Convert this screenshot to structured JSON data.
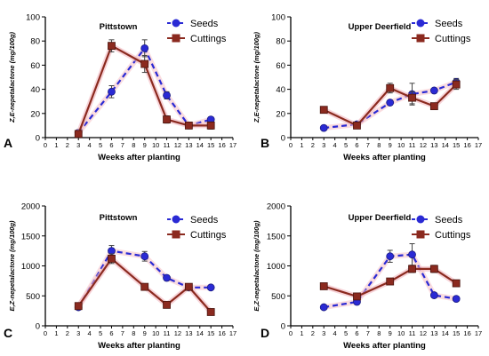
{
  "chart_data": [
    {
      "type": "line",
      "panel_label": "A",
      "title": "Pittstown",
      "xlabel": "Weeks after planting",
      "ylabel": "Z,E-nepetalactone (mg/100g)",
      "xlim": [
        0,
        17
      ],
      "ylim": [
        0,
        100
      ],
      "xticks": [
        0,
        1,
        2,
        3,
        4,
        5,
        6,
        7,
        8,
        9,
        10,
        11,
        12,
        13,
        14,
        15,
        16,
        17
      ],
      "yticks": [
        0,
        20,
        40,
        60,
        80,
        100
      ],
      "legend_position": "top-right",
      "series": [
        {
          "name": "Seeds",
          "style": "dashed",
          "marker": "circle",
          "color": "#2a2ad4",
          "x": [
            3,
            6,
            9,
            11,
            13,
            15
          ],
          "y": [
            4,
            38,
            74,
            35,
            10,
            15
          ],
          "err": [
            2,
            5,
            7,
            3,
            2,
            2
          ]
        },
        {
          "name": "Cuttings",
          "style": "solid",
          "marker": "square",
          "color": "#8b2a1f",
          "x": [
            3,
            6,
            9,
            11,
            13,
            15
          ],
          "y": [
            3,
            76,
            61,
            15,
            10,
            10
          ],
          "err": [
            2,
            5,
            7,
            3,
            2,
            3
          ]
        }
      ]
    },
    {
      "type": "line",
      "panel_label": "B",
      "title": "Upper Deerfield",
      "xlabel": "Weeks after planting",
      "ylabel": "Z,E-nepetalactone (mg/100g)",
      "xlim": [
        0,
        17
      ],
      "ylim": [
        0,
        100
      ],
      "xticks": [
        0,
        1,
        2,
        3,
        4,
        5,
        6,
        7,
        8,
        9,
        10,
        11,
        12,
        13,
        14,
        15,
        16,
        17
      ],
      "yticks": [
        0,
        20,
        40,
        60,
        80,
        100
      ],
      "legend_position": "top-right",
      "series": [
        {
          "name": "Seeds",
          "style": "dashed",
          "marker": "circle",
          "color": "#2a2ad4",
          "x": [
            3,
            6,
            9,
            11,
            13,
            15
          ],
          "y": [
            8,
            11,
            29,
            36,
            39,
            46
          ],
          "err": [
            1,
            1,
            2,
            9,
            1,
            3
          ]
        },
        {
          "name": "Cuttings",
          "style": "solid",
          "marker": "square",
          "color": "#8b2a1f",
          "x": [
            3,
            6,
            9,
            11,
            13,
            15
          ],
          "y": [
            23,
            10,
            41,
            33,
            26,
            44
          ],
          "err": [
            1,
            1,
            4,
            5,
            2,
            4
          ]
        }
      ]
    },
    {
      "type": "line",
      "panel_label": "C",
      "title": "Pittstown",
      "xlabel": "Weeks after planting",
      "ylabel": "E,Z-nepetalactone (mg/100g)",
      "xlim": [
        0,
        17
      ],
      "ylim": [
        0,
        2000
      ],
      "xticks": [
        0,
        1,
        2,
        3,
        4,
        5,
        6,
        7,
        8,
        9,
        10,
        11,
        12,
        13,
        14,
        15,
        16,
        17
      ],
      "yticks": [
        0,
        500,
        1000,
        1500,
        2000
      ],
      "legend_position": "top-right",
      "series": [
        {
          "name": "Seeds",
          "style": "dashed",
          "marker": "circle",
          "color": "#2a2ad4",
          "x": [
            3,
            6,
            9,
            11,
            13,
            15
          ],
          "y": [
            310,
            1250,
            1160,
            800,
            640,
            640
          ],
          "err": [
            40,
            90,
            80,
            40,
            40,
            30
          ]
        },
        {
          "name": "Cuttings",
          "style": "solid",
          "marker": "square",
          "color": "#8b2a1f",
          "x": [
            3,
            6,
            9,
            11,
            13,
            15
          ],
          "y": [
            330,
            1120,
            650,
            350,
            650,
            230
          ],
          "err": [
            40,
            80,
            40,
            40,
            40,
            30
          ]
        }
      ]
    },
    {
      "type": "line",
      "panel_label": "D",
      "title": "Upper Deerfield",
      "xlabel": "Weeks after planting",
      "ylabel": "E,Z-nepetalactone (mg/100g)",
      "xlim": [
        0,
        17
      ],
      "ylim": [
        0,
        2000
      ],
      "xticks": [
        0,
        1,
        2,
        3,
        4,
        5,
        6,
        7,
        8,
        9,
        10,
        11,
        12,
        13,
        14,
        15,
        16,
        17
      ],
      "yticks": [
        0,
        500,
        1000,
        1500,
        2000
      ],
      "legend_position": "top-right",
      "series": [
        {
          "name": "Seeds",
          "style": "dashed",
          "marker": "circle",
          "color": "#2a2ad4",
          "x": [
            3,
            6,
            9,
            11,
            13,
            15
          ],
          "y": [
            310,
            400,
            1160,
            1190,
            510,
            450
          ],
          "err": [
            20,
            30,
            100,
            180,
            40,
            30
          ]
        },
        {
          "name": "Cuttings",
          "style": "solid",
          "marker": "square",
          "color": "#8b2a1f",
          "x": [
            3,
            6,
            9,
            11,
            13,
            15
          ],
          "y": [
            660,
            490,
            740,
            950,
            950,
            710
          ],
          "err": [
            30,
            40,
            40,
            60,
            60,
            50
          ]
        }
      ]
    }
  ]
}
